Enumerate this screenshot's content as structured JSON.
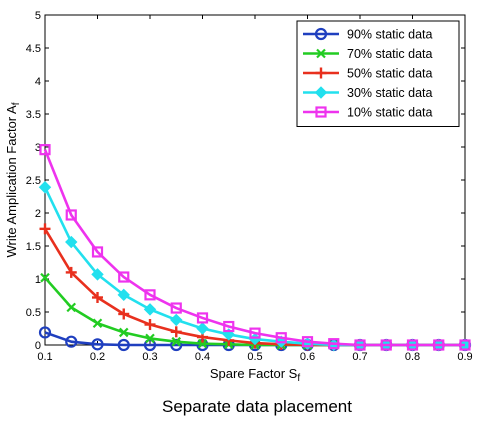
{
  "chart_data": {
    "type": "line",
    "title": "",
    "xlabel_main": "Spare Factor S",
    "xlabel_sub": "f",
    "ylabel_main": "Write Amplication Factor A",
    "ylabel_sub": "f",
    "xlim": [
      0.1,
      0.9
    ],
    "ylim": [
      0,
      5
    ],
    "xticks": [
      "0.1",
      "0.2",
      "0.3",
      "0.4",
      "0.5",
      "0.6",
      "0.7",
      "0.8",
      "0.9"
    ],
    "yticks": [
      "0",
      "0.5",
      "1",
      "1.5",
      "2",
      "2.5",
      "3",
      "3.5",
      "4",
      "4.5",
      "5"
    ],
    "grid": false,
    "legend_position": "top-right",
    "x": [
      0.1,
      0.15,
      0.2,
      0.25,
      0.3,
      0.35,
      0.4,
      0.45,
      0.5,
      0.55,
      0.6,
      0.65,
      0.7,
      0.75,
      0.8,
      0.85,
      0.9
    ],
    "series": [
      {
        "name": "90% static data",
        "color": "#1f3fbf",
        "marker": "circle",
        "values": [
          0.19,
          0.05,
          0.01,
          0.0,
          0.0,
          0.0,
          0.0,
          0.0,
          0.0,
          0.0,
          0.0,
          0.0,
          0.0,
          0.0,
          0.0,
          0.0,
          0.0
        ]
      },
      {
        "name": "70% static data",
        "color": "#22cc22",
        "marker": "x",
        "values": [
          1.02,
          0.57,
          0.33,
          0.19,
          0.1,
          0.05,
          0.02,
          0.01,
          0.0,
          0.0,
          0.0,
          0.0,
          0.0,
          0.0,
          0.0,
          0.0,
          0.0
        ]
      },
      {
        "name": "50% static data",
        "color": "#e8301e",
        "marker": "plus",
        "values": [
          1.76,
          1.1,
          0.72,
          0.47,
          0.31,
          0.2,
          0.12,
          0.07,
          0.03,
          0.01,
          0.0,
          0.0,
          0.0,
          0.0,
          0.0,
          0.0,
          0.0
        ]
      },
      {
        "name": "30% static data",
        "color": "#22e0ee",
        "marker": "diamond",
        "values": [
          2.39,
          1.56,
          1.07,
          0.76,
          0.54,
          0.38,
          0.25,
          0.16,
          0.09,
          0.05,
          0.02,
          0.0,
          0.0,
          0.0,
          0.0,
          0.0,
          0.0
        ]
      },
      {
        "name": "10% static data",
        "color": "#ee33ee",
        "marker": "square",
        "values": [
          2.96,
          1.97,
          1.41,
          1.03,
          0.76,
          0.56,
          0.41,
          0.28,
          0.18,
          0.11,
          0.05,
          0.02,
          0.0,
          0.0,
          0.0,
          0.0,
          0.0
        ]
      }
    ]
  },
  "caption": "Separate data placement"
}
